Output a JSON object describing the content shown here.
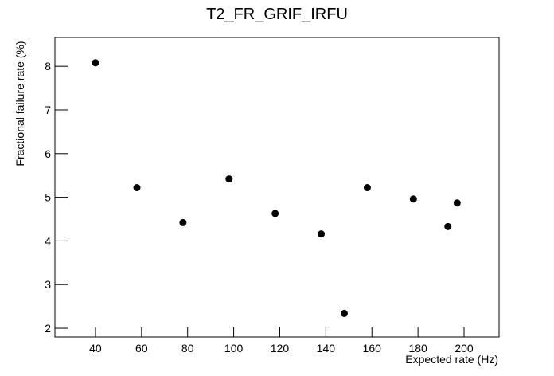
{
  "chart_data": {
    "type": "scatter",
    "title": "T2_FR_GRIF_IRFU",
    "x_label": "Expected rate (Hz)",
    "y_label": "Fractional failure rate (%)",
    "x": [
      40,
      58,
      78,
      98,
      118,
      138,
      148,
      158,
      178,
      193,
      197
    ],
    "values": [
      8.08,
      5.22,
      4.42,
      5.42,
      4.63,
      4.16,
      2.34,
      5.22,
      4.96,
      4.33,
      4.87
    ],
    "color": "#000000",
    "xlim": [
      22.4,
      215.2
    ],
    "xticks": [
      40,
      60,
      80,
      100,
      120,
      140,
      160,
      180,
      200
    ],
    "ylim": [
      1.8,
      8.66
    ],
    "yticks": [
      2,
      3,
      4,
      5,
      6,
      7,
      8
    ]
  }
}
